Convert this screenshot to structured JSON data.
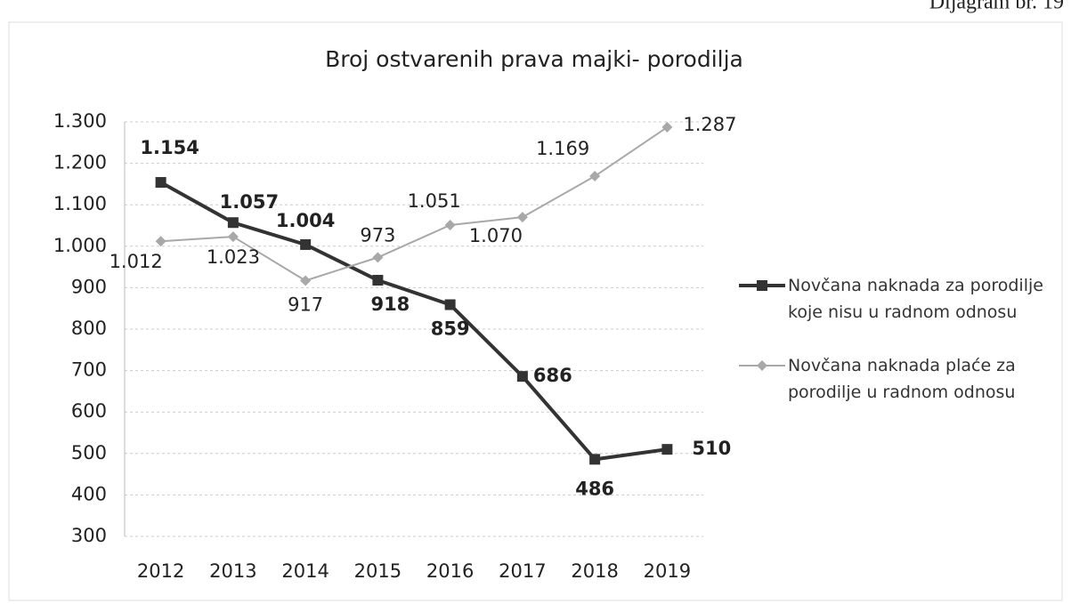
{
  "chart_data": {
    "type": "line",
    "title": "Broj ostvarenih prava majki- porodilja",
    "annotation": "Dijagram br. 19",
    "categories": [
      "2012",
      "2013",
      "2014",
      "2015",
      "2016",
      "2017",
      "2018",
      "2019"
    ],
    "series": [
      {
        "name": "Novčana naknada za porodilje koje nisu u radnom odnosu",
        "color": "#333333",
        "marker": "square",
        "values": [
          1154,
          1057,
          1004,
          918,
          859,
          686,
          486,
          510
        ],
        "value_labels": [
          "1.154",
          "1.057",
          "1.004",
          "918",
          "859",
          "686",
          "486",
          "510"
        ]
      },
      {
        "name": "Novčana naknada plaće za porodilje u radnom odnosu",
        "color": "#a8a8a8",
        "marker": "diamond",
        "values": [
          1012,
          1023,
          917,
          973,
          1051,
          1070,
          1169,
          1287
        ],
        "value_labels": [
          "1.012",
          "1.023",
          "917",
          "973",
          "1.051",
          "1.070",
          "1.169",
          "1.287"
        ]
      }
    ],
    "ylim": [
      300,
      1300
    ],
    "yticks": [
      {
        "value": 300,
        "label": "300"
      },
      {
        "value": 400,
        "label": "400"
      },
      {
        "value": 500,
        "label": "500"
      },
      {
        "value": 600,
        "label": "600"
      },
      {
        "value": 700,
        "label": "700"
      },
      {
        "value": 800,
        "label": "800"
      },
      {
        "value": 900,
        "label": "900"
      },
      {
        "value": 1000,
        "label": "1.000"
      },
      {
        "value": 1100,
        "label": "1.100"
      },
      {
        "value": 1200,
        "label": "1.200"
      },
      {
        "value": 1300,
        "label": "1.300"
      }
    ],
    "grid": true,
    "legend": "right"
  }
}
